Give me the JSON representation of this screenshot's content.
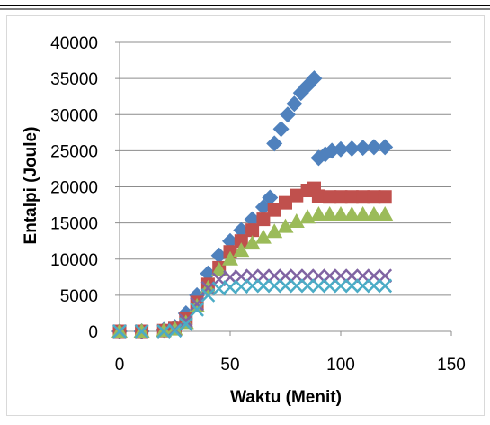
{
  "chart_data": {
    "type": "scatter",
    "title": "",
    "xlabel": "Waktu (Menit)",
    "ylabel": "Entalpi (Joule)",
    "xlim": [
      0,
      150
    ],
    "ylim": [
      0,
      40000
    ],
    "x_ticks": [
      0,
      50,
      100,
      150
    ],
    "y_ticks": [
      0,
      5000,
      10000,
      15000,
      20000,
      25000,
      30000,
      35000,
      40000
    ],
    "x_tick_labels": [
      "0",
      "50",
      "100",
      "150"
    ],
    "y_tick_labels": [
      "0",
      "5000",
      "10000",
      "15000",
      "20000",
      "25000",
      "30000",
      "35000",
      "40000"
    ],
    "grid": "horizontal",
    "legend": "none",
    "series": [
      {
        "color": "#4f81bd",
        "marker": "diamond",
        "points": [
          [
            0,
            0
          ],
          [
            10,
            0
          ],
          [
            20,
            200
          ],
          [
            25,
            600
          ],
          [
            30,
            2500
          ],
          [
            35,
            5000
          ],
          [
            40,
            8000
          ],
          [
            45,
            10500
          ],
          [
            50,
            12500
          ],
          [
            55,
            14000
          ],
          [
            60,
            15500
          ],
          [
            65,
            17200
          ],
          [
            68,
            18500
          ],
          [
            70,
            26000
          ],
          [
            73,
            28000
          ],
          [
            76,
            30000
          ],
          [
            79,
            31500
          ],
          [
            82,
            33000
          ],
          [
            85,
            34000
          ],
          [
            88,
            35000
          ],
          [
            90,
            24000
          ],
          [
            93,
            24500
          ],
          [
            96,
            25000
          ],
          [
            100,
            25200
          ],
          [
            105,
            25300
          ],
          [
            110,
            25400
          ],
          [
            115,
            25500
          ],
          [
            120,
            25500
          ]
        ]
      },
      {
        "color": "#c0504d",
        "marker": "square",
        "points": [
          [
            0,
            0
          ],
          [
            10,
            0
          ],
          [
            20,
            100
          ],
          [
            25,
            400
          ],
          [
            30,
            1800
          ],
          [
            35,
            4000
          ],
          [
            40,
            6500
          ],
          [
            45,
            8800
          ],
          [
            50,
            11000
          ],
          [
            55,
            12500
          ],
          [
            60,
            14000
          ],
          [
            65,
            15500
          ],
          [
            70,
            16800
          ],
          [
            75,
            17800
          ],
          [
            80,
            18800
          ],
          [
            85,
            19500
          ],
          [
            88,
            19800
          ],
          [
            90,
            18700
          ],
          [
            95,
            18600
          ],
          [
            100,
            18600
          ],
          [
            105,
            18600
          ],
          [
            110,
            18600
          ],
          [
            115,
            18600
          ],
          [
            120,
            18600
          ]
        ]
      },
      {
        "color": "#9bbb59",
        "marker": "triangle",
        "points": [
          [
            0,
            0
          ],
          [
            10,
            0
          ],
          [
            20,
            100
          ],
          [
            25,
            300
          ],
          [
            30,
            1200
          ],
          [
            35,
            3500
          ],
          [
            40,
            6000
          ],
          [
            45,
            8500
          ],
          [
            50,
            10000
          ],
          [
            55,
            11200
          ],
          [
            60,
            12200
          ],
          [
            65,
            13000
          ],
          [
            70,
            13800
          ],
          [
            75,
            14500
          ],
          [
            80,
            15200
          ],
          [
            85,
            15800
          ],
          [
            90,
            16200
          ],
          [
            95,
            16200
          ],
          [
            100,
            16200
          ],
          [
            105,
            16200
          ],
          [
            110,
            16200
          ],
          [
            115,
            16200
          ],
          [
            120,
            16200
          ]
        ]
      },
      {
        "color": "#8064a2",
        "marker": "x",
        "points": [
          [
            0,
            0
          ],
          [
            10,
            0
          ],
          [
            20,
            0
          ],
          [
            25,
            200
          ],
          [
            30,
            1500
          ],
          [
            35,
            3800
          ],
          [
            40,
            6000
          ],
          [
            45,
            7200
          ],
          [
            50,
            7500
          ],
          [
            55,
            7600
          ],
          [
            60,
            7700
          ],
          [
            65,
            7700
          ],
          [
            70,
            7700
          ],
          [
            75,
            7700
          ],
          [
            80,
            7700
          ],
          [
            85,
            7700
          ],
          [
            90,
            7700
          ],
          [
            95,
            7700
          ],
          [
            100,
            7700
          ],
          [
            105,
            7700
          ],
          [
            110,
            7700
          ],
          [
            115,
            7700
          ],
          [
            120,
            7700
          ]
        ]
      },
      {
        "color": "#4bacc6",
        "marker": "x",
        "points": [
          [
            0,
            0
          ],
          [
            10,
            0
          ],
          [
            20,
            0
          ],
          [
            25,
            100
          ],
          [
            30,
            1000
          ],
          [
            35,
            3000
          ],
          [
            40,
            5000
          ],
          [
            45,
            5900
          ],
          [
            50,
            6100
          ],
          [
            55,
            6200
          ],
          [
            60,
            6300
          ],
          [
            65,
            6300
          ],
          [
            70,
            6300
          ],
          [
            75,
            6300
          ],
          [
            80,
            6300
          ],
          [
            85,
            6300
          ],
          [
            90,
            6300
          ],
          [
            95,
            6300
          ],
          [
            100,
            6300
          ],
          [
            105,
            6300
          ],
          [
            110,
            6300
          ],
          [
            115,
            6300
          ],
          [
            120,
            6300
          ]
        ]
      }
    ]
  }
}
